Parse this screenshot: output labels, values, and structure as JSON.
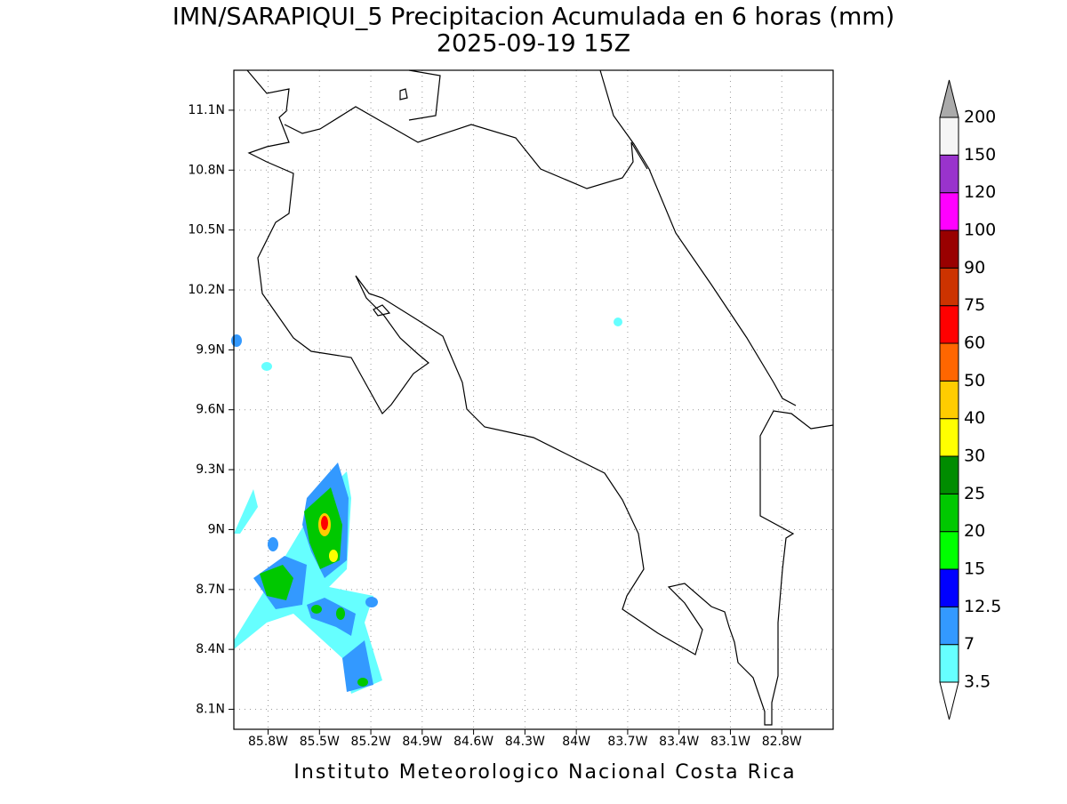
{
  "map": {
    "title": "IMN/SARAPIQUI_5 Precipitacion Acumulada en 6 horas (mm)",
    "subtitle": "2025-09-19 15Z",
    "footer": "Instituto Meteorologico Nacional Costa Rica",
    "xlim": [
      -86.0,
      -82.5
    ],
    "ylim": [
      8.0,
      11.3
    ],
    "grid": true,
    "xticks": [
      {
        "value": -85.8,
        "label": "85.8W"
      },
      {
        "value": -85.5,
        "label": "85.5W"
      },
      {
        "value": -85.2,
        "label": "85.2W"
      },
      {
        "value": -84.9,
        "label": "84.9W"
      },
      {
        "value": -84.6,
        "label": "84.6W"
      },
      {
        "value": -84.3,
        "label": "84.3W"
      },
      {
        "value": -84.0,
        "label": "84W"
      },
      {
        "value": -83.7,
        "label": "83.7W"
      },
      {
        "value": -83.4,
        "label": "83.4W"
      },
      {
        "value": -83.1,
        "label": "83.1W"
      },
      {
        "value": -82.8,
        "label": "82.8W"
      }
    ],
    "yticks": [
      {
        "value": 8.1,
        "label": "8.1N"
      },
      {
        "value": 8.4,
        "label": "8.4N"
      },
      {
        "value": 8.7,
        "label": "8.7N"
      },
      {
        "value": 9.0,
        "label": "9N"
      },
      {
        "value": 9.3,
        "label": "9.3N"
      },
      {
        "value": 9.6,
        "label": "9.6N"
      },
      {
        "value": 9.9,
        "label": "9.9N"
      },
      {
        "value": 10.2,
        "label": "10.2N"
      },
      {
        "value": 10.5,
        "label": "10.5N"
      },
      {
        "value": 10.8,
        "label": "10.8N"
      },
      {
        "value": 11.1,
        "label": "11.1N"
      }
    ],
    "colorbar": {
      "levels": [
        3.5,
        7,
        12.5,
        15,
        20,
        25,
        30,
        40,
        50,
        60,
        75,
        90,
        100,
        120,
        150,
        200
      ],
      "colors": [
        "#ffffff",
        "#66ffff",
        "#3399ff",
        "#0000ff",
        "#00ff00",
        "#00c800",
        "#008c00",
        "#ffff00",
        "#ffcc00",
        "#ff6600",
        "#ff0000",
        "#cc3300",
        "#990000",
        "#ff00ff",
        "#9933cc",
        "#f5f5f5",
        "#aaaaaa"
      ]
    }
  }
}
